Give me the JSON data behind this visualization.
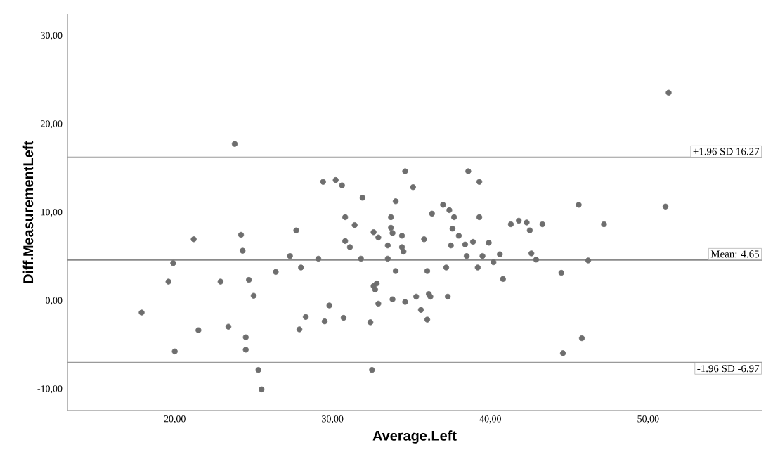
{
  "chart_data": {
    "type": "scatter",
    "xlabel": "Average.Left",
    "ylabel": "Diff.MeasurementLeft",
    "xlim": [
      13.2,
      57.2
    ],
    "ylim": [
      -12.4,
      32.5
    ],
    "xticks": [
      {
        "value": 20,
        "label": "20,00"
      },
      {
        "value": 30,
        "label": "30,00"
      },
      {
        "value": 40,
        "label": "40,00"
      },
      {
        "value": 50,
        "label": "50,00"
      }
    ],
    "yticks": [
      {
        "value": -10,
        "label": "-10,00"
      },
      {
        "value": 0,
        "label": "0,00"
      },
      {
        "value": 10,
        "label": "10,00"
      },
      {
        "value": 20,
        "label": "20,00"
      },
      {
        "value": 30,
        "label": "30,00"
      }
    ],
    "marker": "circle",
    "grid": false,
    "legend": false,
    "series": [
      {
        "color": "#6e6e6e",
        "x": [
          23.8,
          51.3,
          34.6,
          29.4,
          30.2,
          30.6,
          35.1,
          31.9,
          34.0,
          36.3,
          30.8,
          33.7,
          31.4,
          33.7,
          27.7,
          32.6,
          33.8,
          34.4,
          21.2,
          24.2,
          32.9,
          30.8,
          35.8,
          31.1,
          33.5,
          34.4,
          34.5,
          24.3,
          27.3,
          29.1,
          31.8,
          33.5,
          19.9,
          28.0,
          34.0,
          36.0,
          19.6,
          22.9,
          24.7,
          26.4,
          25.0,
          32.6,
          32.8,
          32.7,
          32.9,
          33.8,
          34.6,
          35.3,
          36.1,
          36.2,
          35.6,
          17.9,
          29.8,
          28.3,
          29.5,
          30.7,
          32.4,
          38.6,
          39.3,
          37.0,
          37.4,
          37.7,
          39.3,
          37.6,
          38.0,
          38.9,
          38.4,
          37.5,
          39.9,
          41.3,
          41.8,
          42.3,
          42.5,
          43.3,
          45.6,
          47.2,
          51.1,
          38.5,
          39.5,
          40.6,
          42.6,
          42.9,
          40.2,
          46.2,
          39.2,
          37.2,
          40.8,
          44.5,
          37.3,
          36.0,
          21.5,
          23.4,
          24.5,
          24.5,
          20.0,
          25.3,
          25.5,
          27.9,
          32.5,
          44.6,
          45.8
        ],
        "values": [
          17.8,
          23.6,
          14.7,
          13.5,
          13.7,
          13.1,
          12.9,
          11.7,
          11.3,
          9.9,
          9.5,
          9.5,
          8.6,
          8.3,
          8.0,
          7.8,
          7.7,
          7.4,
          7.0,
          7.5,
          7.2,
          6.8,
          7.0,
          6.1,
          6.3,
          6.1,
          5.6,
          5.7,
          5.1,
          4.8,
          4.8,
          4.8,
          4.3,
          3.8,
          3.4,
          3.4,
          2.2,
          2.2,
          2.4,
          3.3,
          0.6,
          1.7,
          2.0,
          1.3,
          -0.3,
          0.2,
          -0.1,
          0.5,
          0.8,
          0.5,
          -1.0,
          -1.3,
          -0.5,
          -1.8,
          -2.3,
          -1.9,
          -2.4,
          14.7,
          13.5,
          10.9,
          10.3,
          9.5,
          9.5,
          8.2,
          7.4,
          6.7,
          6.4,
          6.3,
          6.6,
          8.7,
          9.1,
          8.9,
          8.0,
          8.7,
          10.9,
          8.7,
          10.7,
          5.1,
          5.1,
          5.3,
          5.4,
          4.7,
          4.4,
          4.6,
          3.8,
          3.8,
          2.5,
          3.2,
          0.5,
          -2.1,
          -3.3,
          -2.9,
          -4.1,
          -5.5,
          -5.7,
          -7.8,
          -10.0,
          -3.2,
          -7.8,
          -5.9,
          -4.2
        ]
      }
    ],
    "ref_lines": [
      {
        "axis": "y",
        "value": 16.27,
        "label": "+1.96 SD  16.27",
        "color": "#9a9a9a"
      },
      {
        "axis": "y",
        "value": 4.65,
        "label": "Mean: 4.65",
        "color": "#8a8a8a"
      },
      {
        "axis": "y",
        "value": -6.97,
        "label": "-1.96 SD  -6.97",
        "color": "#9a9a9a"
      }
    ]
  }
}
